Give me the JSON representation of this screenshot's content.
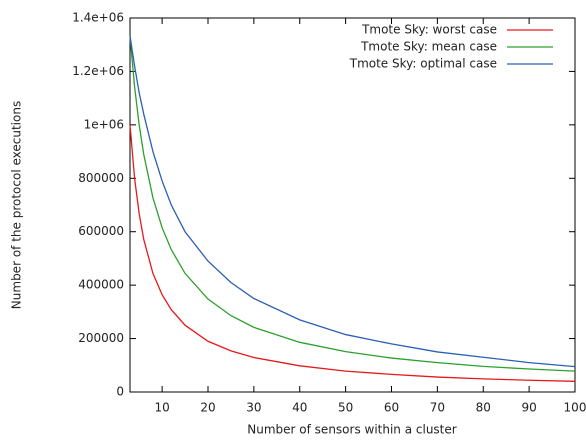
{
  "chart_data": {
    "type": "line",
    "x_label": "Number of sensors within a cluster",
    "y_label": "Number of the protocol executions",
    "x": [
      3,
      4,
      5,
      6,
      8,
      10,
      12,
      15,
      20,
      25,
      30,
      40,
      50,
      60,
      70,
      80,
      90,
      100
    ],
    "series": [
      {
        "name": "Tmote Sky: worst case",
        "color": "#e41a1c",
        "values": [
          1000000,
          800000,
          667000,
          571000,
          444000,
          364000,
          308000,
          250000,
          190000,
          154000,
          129000,
          98000,
          78000,
          66000,
          56000,
          49000,
          44000,
          40000
        ]
      },
      {
        "name": "Tmote Sky: mean case",
        "color": "#2ca02c",
        "values": [
          1333000,
          1143000,
          1000000,
          889000,
          727000,
          615000,
          533000,
          444000,
          348000,
          286000,
          242000,
          186000,
          151000,
          127000,
          110000,
          96000,
          86000,
          78000
        ]
      },
      {
        "name": "Tmote Sky: optimal case",
        "color": "#2b5fb4",
        "values": [
          1333000,
          1220000,
          1120000,
          1040000,
          900000,
          790000,
          700000,
          600000,
          490000,
          410000,
          350000,
          270000,
          215000,
          180000,
          150000,
          130000,
          110000,
          95000
        ]
      }
    ],
    "xlim": [
      3,
      100
    ],
    "xticks": [
      10,
      20,
      30,
      40,
      50,
      60,
      70,
      80,
      90,
      100
    ],
    "ylim": [
      0,
      1400000
    ],
    "yticks": [
      0,
      200000,
      400000,
      600000,
      800000,
      {
        "value": 1000000,
        "label": "1e+06"
      },
      {
        "value": 1200000,
        "label": "1.2e+06"
      },
      {
        "value": 1400000,
        "label": "1.4e+06"
      }
    ],
    "legend": "top-right"
  }
}
